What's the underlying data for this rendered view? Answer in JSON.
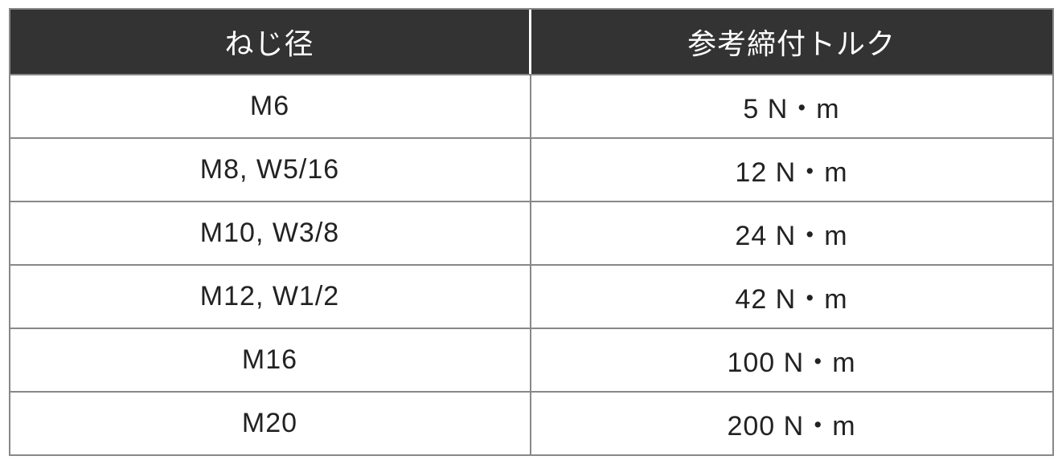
{
  "table": {
    "type": "table",
    "columns": [
      "ねじ径",
      "参考締付トルク"
    ],
    "rows": [
      [
        "M6",
        "5 N・m"
      ],
      [
        "M8, W5/16",
        "12 N・m"
      ],
      [
        "M10, W3/8",
        "24 N・m"
      ],
      [
        "M12, W1/2",
        "42 N・m"
      ],
      [
        "M16",
        "100 N・m"
      ],
      [
        "M20",
        "200 N・m"
      ]
    ],
    "styling": {
      "header_bg": "#333333",
      "header_text_color": "#ffffff",
      "header_fontsize": 36,
      "cell_bg": "#ffffff",
      "cell_text_color": "#222222",
      "cell_fontsize": 34,
      "border_color": "#888888",
      "header_divider_color": "#ffffff",
      "column_widths": [
        "50%",
        "50%"
      ],
      "text_align": "center"
    }
  }
}
